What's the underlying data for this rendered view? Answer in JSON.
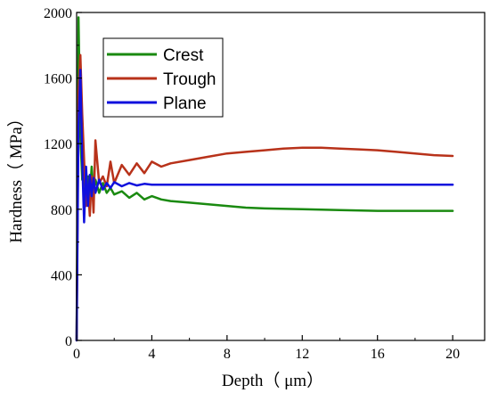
{
  "chart_data": {
    "type": "line",
    "title": "",
    "xlabel": "Depth（ μm）",
    "ylabel": "Hardness（ MPa）",
    "xlim": [
      0,
      21.7
    ],
    "ylim": [
      0,
      2000
    ],
    "xticks": [
      0,
      4,
      8,
      12,
      16,
      20
    ],
    "yticks": [
      0,
      400,
      800,
      1200,
      1600,
      2000
    ],
    "grid": false,
    "legend_position": "top-left",
    "series": [
      {
        "name": "Crest",
        "color": "#1a8a10",
        "x": [
          0.0,
          0.1,
          0.2,
          0.3,
          0.4,
          0.5,
          0.6,
          0.7,
          0.8,
          0.9,
          1.0,
          1.2,
          1.4,
          1.6,
          1.8,
          2.0,
          2.4,
          2.8,
          3.2,
          3.6,
          4.0,
          4.5,
          5.0,
          6.0,
          7.0,
          8.0,
          9.0,
          10.0,
          12.0,
          14.0,
          16.0,
          18.0,
          20.0
        ],
        "y": [
          0,
          1970,
          1250,
          980,
          1010,
          860,
          1000,
          880,
          1060,
          900,
          980,
          900,
          960,
          900,
          930,
          890,
          910,
          870,
          900,
          860,
          880,
          860,
          850,
          840,
          830,
          820,
          810,
          805,
          800,
          795,
          790,
          790,
          790
        ]
      },
      {
        "name": "Trough",
        "color": "#b8321a",
        "x": [
          0.0,
          0.1,
          0.2,
          0.3,
          0.4,
          0.5,
          0.6,
          0.7,
          0.8,
          0.9,
          1.0,
          1.2,
          1.4,
          1.6,
          1.8,
          2.0,
          2.4,
          2.8,
          3.2,
          3.6,
          4.0,
          4.5,
          5.0,
          6.0,
          7.0,
          8.0,
          9.0,
          10.0,
          11.0,
          12.0,
          13.0,
          14.0,
          15.0,
          16.0,
          17.0,
          18.0,
          19.0,
          20.0
        ],
        "y": [
          0,
          1520,
          1740,
          1380,
          1100,
          820,
          940,
          760,
          1000,
          780,
          1220,
          960,
          1000,
          940,
          1090,
          960,
          1070,
          1010,
          1080,
          1020,
          1090,
          1060,
          1080,
          1100,
          1120,
          1140,
          1150,
          1160,
          1170,
          1175,
          1175,
          1170,
          1165,
          1160,
          1150,
          1140,
          1130,
          1125
        ]
      },
      {
        "name": "Plane",
        "color": "#1010dd",
        "x": [
          0.0,
          0.1,
          0.2,
          0.3,
          0.4,
          0.5,
          0.6,
          0.7,
          0.8,
          0.9,
          1.0,
          1.2,
          1.4,
          1.6,
          1.8,
          2.0,
          2.4,
          2.8,
          3.2,
          3.6,
          4.0,
          5.0,
          6.0,
          8.0,
          10.0,
          12.0,
          14.0,
          16.0,
          18.0,
          20.0
        ],
        "y": [
          0,
          1300,
          1650,
          1100,
          720,
          1060,
          820,
          1010,
          880,
          990,
          900,
          980,
          920,
          960,
          930,
          965,
          940,
          960,
          945,
          955,
          950,
          950,
          950,
          950,
          950,
          950,
          950,
          950,
          950,
          950
        ]
      }
    ]
  }
}
